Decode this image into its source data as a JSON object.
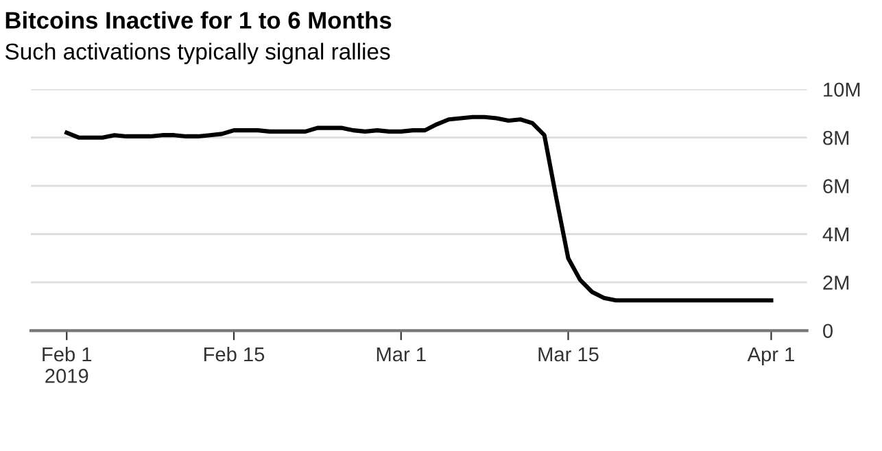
{
  "chart_data": {
    "type": "line",
    "title": "Bitcoins Inactive for 1 to 6 Months",
    "subtitle": "Such activations typically signal rallies",
    "x": [
      "2019-02-01",
      "2019-02-02",
      "2019-02-03",
      "2019-02-04",
      "2019-02-05",
      "2019-02-06",
      "2019-02-07",
      "2019-02-08",
      "2019-02-09",
      "2019-02-10",
      "2019-02-11",
      "2019-02-12",
      "2019-02-13",
      "2019-02-14",
      "2019-02-15",
      "2019-02-16",
      "2019-02-17",
      "2019-02-18",
      "2019-02-19",
      "2019-02-20",
      "2019-02-21",
      "2019-02-22",
      "2019-02-23",
      "2019-02-24",
      "2019-02-25",
      "2019-02-26",
      "2019-02-27",
      "2019-02-28",
      "2019-03-01",
      "2019-03-02",
      "2019-03-03",
      "2019-03-04",
      "2019-03-05",
      "2019-03-06",
      "2019-03-07",
      "2019-03-08",
      "2019-03-09",
      "2019-03-10",
      "2019-03-11",
      "2019-03-12",
      "2019-03-13",
      "2019-03-14",
      "2019-03-15",
      "2019-03-16",
      "2019-03-17",
      "2019-03-18",
      "2019-03-19",
      "2019-03-20",
      "2019-03-21",
      "2019-03-22",
      "2019-03-23",
      "2019-03-24",
      "2019-03-25",
      "2019-03-26",
      "2019-03-27",
      "2019-03-28",
      "2019-03-29",
      "2019-03-30",
      "2019-03-31",
      "2019-04-01"
    ],
    "series": [
      {
        "color": "#000000",
        "values": [
          8.2,
          8.0,
          8.0,
          8.0,
          8.1,
          8.05,
          8.05,
          8.05,
          8.1,
          8.1,
          8.05,
          8.05,
          8.1,
          8.15,
          8.3,
          8.3,
          8.3,
          8.25,
          8.25,
          8.25,
          8.25,
          8.4,
          8.4,
          8.4,
          8.3,
          8.25,
          8.3,
          8.25,
          8.25,
          8.3,
          8.3,
          8.55,
          8.75,
          8.8,
          8.85,
          8.85,
          8.8,
          8.7,
          8.75,
          8.6,
          8.1,
          5.5,
          3.0,
          2.1,
          1.6,
          1.35,
          1.25,
          1.25,
          1.25,
          1.25,
          1.25,
          1.25,
          1.25,
          1.25,
          1.25,
          1.25,
          1.25,
          1.25,
          1.25,
          1.25
        ]
      }
    ],
    "xlim": [
      "2019-01-29",
      "2019-04-04"
    ],
    "xticks": [
      {
        "value": "2019-02-01",
        "label": "Feb 1\n2019"
      },
      {
        "value": "2019-02-15",
        "label": "Feb 15"
      },
      {
        "value": "2019-03-01",
        "label": "Mar 1"
      },
      {
        "value": "2019-03-15",
        "label": "Mar 15"
      },
      {
        "value": "2019-04-01",
        "label": "Apr 1"
      }
    ],
    "ylim": [
      0,
      10
    ],
    "yticks": [
      0,
      {
        "value": 2,
        "label": "2M"
      },
      {
        "value": 4,
        "label": "4M"
      },
      {
        "value": 6,
        "label": "6M"
      },
      {
        "value": 8,
        "label": "8M"
      },
      {
        "value": 10,
        "label": "10M"
      }
    ],
    "grid": "y",
    "marker": "none",
    "line_style": "solid"
  }
}
